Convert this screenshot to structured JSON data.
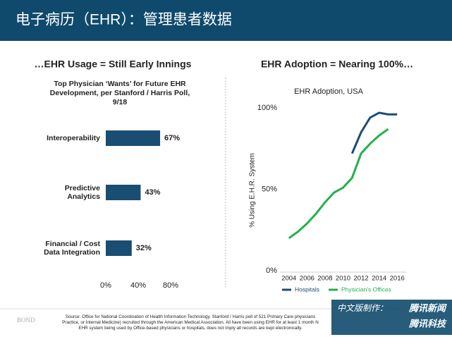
{
  "header": {
    "title": "电子病历（EHR）：管理患者数据"
  },
  "sections": [
    "…EHR Usage = Still Early Innings",
    "EHR Adoption = Nearing 100%…"
  ],
  "chart_data": [
    {
      "type": "hbar",
      "title": "Top Physician ‘Wants’ for Future EHR Development, per Stanford / Harris Poll, 9/18",
      "categories": [
        "Interoperability",
        "Predictive Analytics",
        "Financial / Cost Data Integration"
      ],
      "values": [
        67,
        43,
        32
      ],
      "value_labels": [
        "67%",
        "43%",
        "32%"
      ],
      "color": "#1a4d72",
      "xlim": [
        0,
        80
      ],
      "xticks": [
        {
          "value": 0,
          "label": "0%"
        },
        {
          "value": 40,
          "label": "40%"
        },
        {
          "value": 80,
          "label": "80%"
        }
      ]
    },
    {
      "type": "line",
      "title": "EHR Adoption, USA",
      "y_label": "% Using E.H.R. System",
      "x": [
        2004,
        2005,
        2006,
        2007,
        2008,
        2009,
        2010,
        2011,
        2012,
        2013,
        2014,
        2015,
        2016
      ],
      "series": [
        {
          "name": "Hospitals",
          "color": "#1a4d72",
          "values": [
            null,
            null,
            null,
            null,
            null,
            null,
            null,
            72,
            85,
            94,
            97,
            96,
            96
          ]
        },
        {
          "name": "Physician's Offices",
          "color": "#22b14c",
          "values": [
            20,
            24,
            29,
            35,
            42,
            48,
            51,
            57,
            72,
            78,
            83,
            87,
            null
          ]
        }
      ],
      "xlim": [
        2003,
        2017
      ],
      "xticks": [
        2004,
        2006,
        2008,
        2010,
        2012,
        2014,
        2016
      ],
      "ylim": [
        0,
        100
      ],
      "yticks": [
        {
          "value": 0,
          "label": "0%"
        },
        {
          "value": 50,
          "label": "50%"
        },
        {
          "value": 100,
          "label": "100%"
        }
      ],
      "legend": "bottom"
    }
  ],
  "footer": {
    "logo": "BOND",
    "source": [
      "Source: Office for National Coordination of Health Information Technology. Stanford / Harris poll of 521 Primary Care physicians",
      "Practice, or Internal Medicine) recruited through the American Medical Association.  All have been using EHR for at least 1 month N",
      "EHR system being used by Office-based physicians or hospitals, does not imply all records are kept electronically."
    ],
    "badge": [
      "中文版制作：",
      "腾讯新闻",
      "腾讯科技"
    ]
  }
}
